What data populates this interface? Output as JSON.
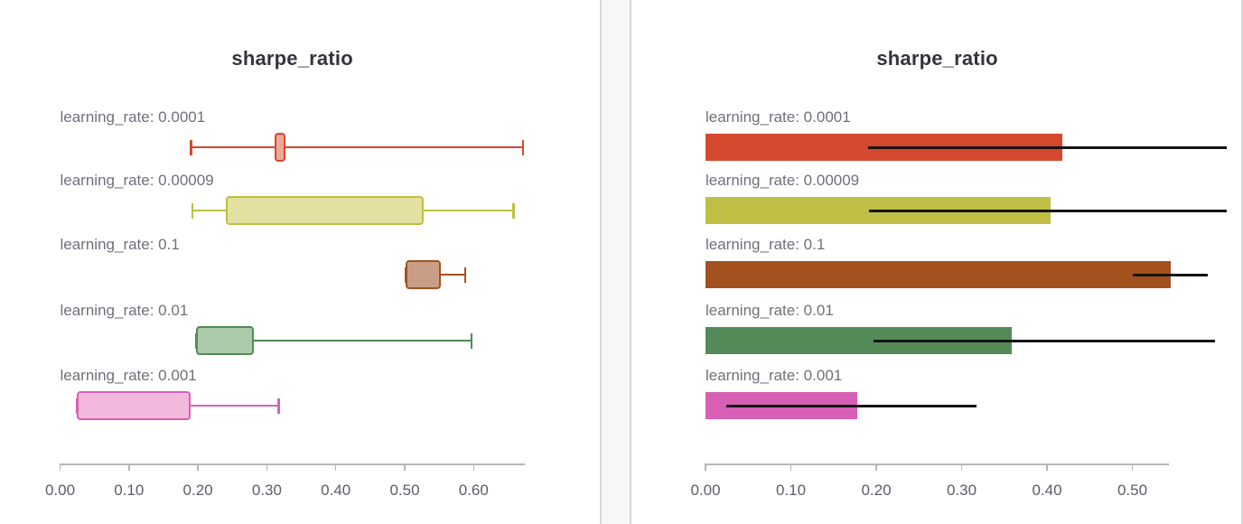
{
  "chart_data": [
    {
      "type": "box",
      "title": "sharpe_ratio",
      "orientation": "horizontal",
      "categories": [
        "learning_rate: 0.0001",
        "learning_rate: 0.00009",
        "learning_rate: 0.1",
        "learning_rate: 0.01",
        "learning_rate: 0.001"
      ],
      "boxes": [
        {
          "whisker_low": 0.19,
          "q1": 0.311,
          "q3": 0.327,
          "whisker_high": 0.672
        },
        {
          "whisker_low": 0.192,
          "q1": 0.24,
          "q3": 0.527,
          "whisker_high": 0.658
        },
        {
          "whisker_low": 0.501,
          "q1": 0.501,
          "q3": 0.553,
          "whisker_high": 0.588
        },
        {
          "whisker_low": 0.197,
          "q1": 0.197,
          "q3": 0.281,
          "whisker_high": 0.597
        },
        {
          "whisker_low": 0.024,
          "q1": 0.024,
          "q3": 0.19,
          "whisker_high": 0.317
        }
      ],
      "colors": [
        "#d5492f",
        "#bfbf45",
        "#a3511f",
        "#538a58",
        "#dc5fb8"
      ],
      "fills": [
        "#eda89b",
        "#e2e1a2",
        "#c99e87",
        "#adcaab",
        "#f2b9dd"
      ],
      "xlim": [
        0,
        0.674
      ],
      "xticks": [
        0,
        0.1,
        0.2,
        0.3,
        0.4,
        0.5,
        0.6
      ],
      "xtick_labels": [
        "0.00",
        "0.10",
        "0.20",
        "0.30",
        "0.40",
        "0.50",
        "0.60"
      ],
      "xlabel": "",
      "ylabel": "",
      "grid": false,
      "legend": false
    },
    {
      "type": "bar",
      "title": "sharpe_ratio",
      "orientation": "horizontal",
      "categories": [
        "learning_rate: 0.0001",
        "learning_rate: 0.00009",
        "learning_rate: 0.1",
        "learning_rate: 0.01",
        "learning_rate: 0.001"
      ],
      "values": [
        0.418,
        0.404,
        0.545,
        0.359,
        0.178
      ],
      "error_ranges": [
        [
          0.19,
          0.672
        ],
        [
          0.192,
          0.658
        ],
        [
          0.501,
          0.588
        ],
        [
          0.197,
          0.597
        ],
        [
          0.024,
          0.317
        ]
      ],
      "colors": [
        "#d5492f",
        "#bfbf45",
        "#a3511f",
        "#538a58",
        "#d75fb6"
      ],
      "error_color": "#141414",
      "xlim": [
        0,
        0.543
      ],
      "xticks": [
        0,
        0.1,
        0.2,
        0.3,
        0.4,
        0.5
      ],
      "xtick_labels": [
        "0.00",
        "0.10",
        "0.20",
        "0.30",
        "0.40",
        "0.50"
      ],
      "xlabel": "",
      "ylabel": "",
      "grid": false,
      "legend": false
    }
  ]
}
